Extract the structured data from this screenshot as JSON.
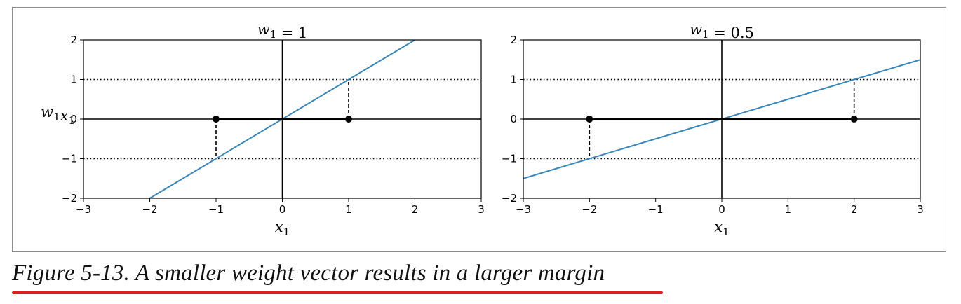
{
  "colors": {
    "line": "#3a86b8",
    "axis": "#000000",
    "underline": "#e0201c"
  },
  "caption": "Figure 5-13. A smaller weight vector results in a larger margin",
  "chart_data": [
    {
      "type": "line",
      "title_base": "w",
      "title_sub": "1",
      "title_rest": " = 1",
      "xlabel_base": "x",
      "xlabel_sub": "1",
      "ylabel": [
        {
          "t": "w",
          "sub": "1"
        },
        {
          "t": "x",
          "sub": "1"
        }
      ],
      "xlim": [
        -3,
        3
      ],
      "ylim": [
        -2,
        2
      ],
      "xticks": [
        -3,
        -2,
        -1,
        0,
        1,
        2,
        3
      ],
      "yticks": [
        -2,
        -1,
        0,
        1,
        2
      ],
      "xtick_labels": [
        "−3",
        "−2",
        "−1",
        "0",
        "1",
        "2",
        "3"
      ],
      "ytick_labels": [
        "−2",
        "−1",
        "0",
        "1",
        "2"
      ],
      "series": [
        {
          "x": [
            -3,
            3
          ],
          "y": [
            -3,
            3
          ]
        }
      ],
      "dotted_lines_y": [
        1,
        -1
      ],
      "margin_segment": {
        "x": [
          -1,
          1
        ],
        "y": 0
      },
      "dashed_drops": [
        {
          "x": 1,
          "from": 0,
          "to": 1
        },
        {
          "x": -1,
          "from": 0,
          "to": -1
        }
      ],
      "points": [
        {
          "x": -1,
          "y": 0
        },
        {
          "x": 1,
          "y": 0
        }
      ],
      "grid": false
    },
    {
      "type": "line",
      "title_base": "w",
      "title_sub": "1",
      "title_rest": " = 0.5",
      "xlabel_base": "x",
      "xlabel_sub": "1",
      "ylabel": [],
      "xlim": [
        -3,
        3
      ],
      "ylim": [
        -2,
        2
      ],
      "xticks": [
        -3,
        -2,
        -1,
        0,
        1,
        2,
        3
      ],
      "yticks": [
        -2,
        -1,
        0,
        1,
        2
      ],
      "xtick_labels": [
        "−3",
        "−2",
        "−1",
        "0",
        "1",
        "2",
        "3"
      ],
      "ytick_labels": [
        "−2",
        "−1",
        "0",
        "1",
        "2"
      ],
      "series": [
        {
          "x": [
            -3,
            3
          ],
          "y": [
            -1.5,
            1.5
          ]
        }
      ],
      "dotted_lines_y": [
        1,
        -1
      ],
      "margin_segment": {
        "x": [
          -2,
          2
        ],
        "y": 0
      },
      "dashed_drops": [
        {
          "x": 2,
          "from": 0,
          "to": 1
        },
        {
          "x": -2,
          "from": 0,
          "to": -1
        }
      ],
      "points": [
        {
          "x": -2,
          "y": 0
        },
        {
          "x": 2,
          "y": 0
        }
      ],
      "grid": false
    }
  ]
}
